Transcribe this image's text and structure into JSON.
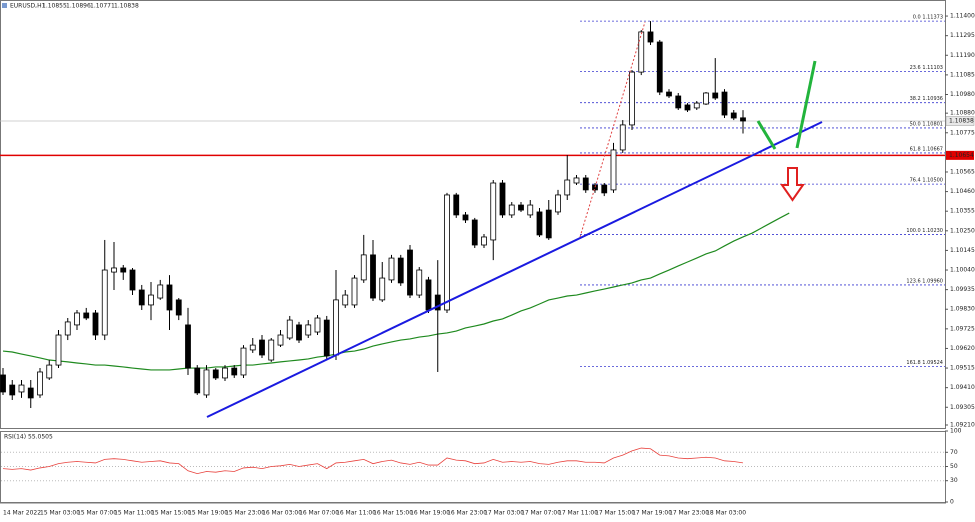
{
  "chart_data": {
    "type": "candlestick",
    "symbol": "EURUSD,H1",
    "categories": [
      "14 Mar 2022",
      null,
      null,
      null,
      "15 Mar 03:00",
      null,
      null,
      null,
      "15 Mar 07:00",
      null,
      null,
      null,
      "15 Mar 11:00",
      null,
      null,
      null,
      "15 Mar 15:00",
      null,
      null,
      null,
      "15 Mar 19:00",
      null,
      null,
      null,
      "15 Mar 23:00",
      null,
      null,
      null,
      "16 Mar 03:00",
      null,
      null,
      null,
      "16 Mar 07:00",
      null,
      null,
      null,
      "16 Mar 11:00",
      null,
      null,
      null,
      "16 Mar 15:00",
      null,
      null,
      null,
      "16 Mar 19:00",
      null,
      null,
      null,
      "16 Mar 23:00",
      null,
      null,
      null,
      "17 Mar 03:00",
      null,
      null,
      null,
      "17 Mar 07:00",
      null,
      null,
      null,
      "17 Mar 11:00",
      null,
      null,
      null,
      "17 Mar 15:00",
      null,
      null,
      null,
      "17 Mar 19:00",
      null,
      null,
      null,
      "17 Mar 23:00",
      null,
      null,
      null,
      "18 Mar 03:00",
      null,
      null,
      null,
      null,
      null,
      null,
      null,
      null,
      null
    ],
    "open": [
      1.09478,
      1.09424,
      1.09387,
      1.09408,
      1.09371,
      1.09462,
      1.09531,
      1.09692,
      1.09746,
      1.0981,
      1.0981,
      1.09692,
      1.10029,
      1.10051,
      1.1004,
      1.09933,
      1.09853,
      1.0989,
      1.0996,
      1.0988,
      1.09746,
      1.09515,
      1.09371,
      1.09505,
      1.09462,
      1.09515,
      1.09478,
      1.09612,
      1.09665,
      1.09558,
      1.09638,
      1.09676,
      1.09746,
      1.09692,
      1.09708,
      1.09772,
      1.09585,
      1.09853,
      1.09853,
      1.09987,
      1.10121,
      1.0988,
      1.09987,
      1.10104,
      1.10147,
      1.09906,
      1.09987,
      1.09906,
      1.09826,
      1.10442,
      1.10335,
      1.10308,
      1.10174,
      1.10201,
      1.10506,
      1.10335,
      1.10388,
      1.10335,
      1.10351,
      1.10361,
      1.10351,
      1.10442,
      1.10506,
      1.10533,
      1.10495,
      1.10495,
      1.10469,
      1.10683,
      1.10817,
      1.111,
      1.11315,
      1.11261,
      1.10993,
      1.10972,
      1.10924,
      1.10908,
      1.10929,
      1.10988,
      1.10993,
      1.10881,
      1.10855,
      null,
      null,
      null,
      null,
      null
    ],
    "high": [
      1.09515,
      1.09451,
      1.09451,
      1.09451,
      1.09515,
      1.09558,
      1.09719,
      1.09783,
      1.09826,
      1.09837,
      1.09826,
      1.10201,
      1.1019,
      1.10067,
      1.10051,
      1.0996,
      1.09976,
      1.09987,
      1.10013,
      1.0989,
      1.09837,
      1.09531,
      1.09531,
      1.09515,
      1.09531,
      1.09531,
      1.09638,
      1.09676,
      1.09692,
      1.09676,
      1.09719,
      1.09794,
      1.09762,
      1.09772,
      1.09799,
      1.09794,
      1.1004,
      1.09933,
      1.10013,
      1.10228,
      1.10201,
      1.10083,
      1.10121,
      1.10121,
      1.10174,
      1.10056,
      1.10003,
      1.10093,
      1.10453,
      1.10453,
      1.10351,
      1.10319,
      1.10233,
      1.10522,
      1.10522,
      1.10404,
      1.10404,
      1.10415,
      1.10372,
      1.10415,
      1.10469,
      1.10656,
      1.10549,
      1.10549,
      1.10506,
      1.10506,
      1.10721,
      1.10843,
      1.11111,
      1.11325,
      1.11373,
      1.11272,
      1.11009,
      1.10988,
      1.10934,
      1.10945,
      1.10993,
      1.11175,
      1.11009,
      1.10897,
      1.10896,
      null,
      null,
      null,
      null,
      null
    ],
    "low": [
      1.09371,
      1.09344,
      1.09355,
      1.09301,
      1.09355,
      1.09451,
      1.09515,
      1.09665,
      1.09719,
      1.09772,
      1.09665,
      1.09665,
      1.09933,
      1.09987,
      1.09906,
      1.09826,
      1.09772,
      1.0988,
      1.09719,
      1.09772,
      1.09478,
      1.09371,
      1.09355,
      1.09451,
      1.09446,
      1.09462,
      1.09462,
      1.09596,
      1.09569,
      1.09548,
      1.09628,
      1.09665,
      1.09649,
      1.09676,
      1.09692,
      1.09564,
      1.09558,
      1.09837,
      1.09837,
      1.09971,
      1.09874,
      1.09869,
      1.09971,
      1.09955,
      1.0989,
      1.0989,
      1.0981,
      1.09494,
      1.0981,
      1.10319,
      1.10292,
      1.10158,
      1.10158,
      1.10093,
      1.10319,
      1.10319,
      1.10351,
      1.10319,
      1.10217,
      1.10201,
      1.10335,
      1.10415,
      1.10495,
      1.10453,
      1.10453,
      1.10436,
      1.10453,
      1.10667,
      1.1079,
      1.11084,
      1.11245,
      1.10977,
      1.10961,
      1.10897,
      1.10886,
      1.10897,
      1.10924,
      1.10951,
      1.10854,
      1.10843,
      1.10771,
      null,
      null,
      null,
      null,
      null
    ],
    "close": [
      1.09387,
      1.09371,
      1.09424,
      1.09355,
      1.09494,
      1.09531,
      1.09692,
      1.09762,
      1.0981,
      1.09783,
      1.09692,
      1.1004,
      1.10051,
      1.10029,
      1.09933,
      1.09853,
      1.09906,
      1.0996,
      1.09826,
      1.09799,
      1.09515,
      1.09382,
      1.09505,
      1.09462,
      1.09515,
      1.09478,
      1.09622,
      1.09638,
      1.09585,
      1.09665,
      1.09692,
      1.09772,
      1.09665,
      1.09746,
      1.09783,
      1.0958,
      1.0988,
      1.09906,
      1.09997,
      1.10121,
      1.0989,
      1.09997,
      1.10104,
      1.09971,
      1.09906,
      1.1004,
      1.09826,
      1.09826,
      1.10442,
      1.10335,
      1.10308,
      1.10174,
      1.10217,
      1.10506,
      1.10335,
      1.10388,
      1.10361,
      1.10388,
      1.10228,
      1.10212,
      1.10442,
      1.10522,
      1.10533,
      1.10469,
      1.10469,
      1.10453,
      1.10683,
      1.10817,
      1.111,
      1.11315,
      1.11261,
      1.10993,
      1.10972,
      1.10908,
      1.10897,
      1.10934,
      1.10988,
      1.10961,
      1.1087,
      1.10854,
      1.10838,
      null,
      null,
      null,
      null,
      null
    ],
    "up_color": "#ffffff",
    "down_color": "#000000",
    "ylim": [
      1.09194,
      1.11486
    ],
    "yticks": [
      {
        "value": 1.114,
        "label": "1.11400"
      },
      1.11295,
      {
        "value": 1.1119,
        "label": "1.11190"
      },
      1.11085,
      {
        "value": 1.1098,
        "label": "1.10980"
      },
      {
        "value": 1.1088,
        "label": "1.10880"
      },
      1.10775,
      1.10565,
      {
        "value": 1.1046,
        "label": "1.10460"
      },
      1.10355,
      {
        "value": 1.1025,
        "label": "1.10250"
      },
      1.10145,
      {
        "value": 1.1004,
        "label": "1.10040"
      },
      1.09935,
      {
        "value": 1.0983,
        "label": "1.09830"
      },
      1.09725,
      {
        "value": 1.0962,
        "label": "1.09620"
      },
      1.09515,
      {
        "value": 1.0941,
        "label": "1.09410"
      },
      1.09305,
      {
        "value": 1.0921,
        "label": "1.09210"
      }
    ],
    "ma": {
      "color": "#1f8a1f",
      "values": [
        1.09606,
        1.09601,
        1.0959,
        1.0958,
        1.09569,
        1.09558,
        1.09553,
        1.09548,
        1.09542,
        1.09537,
        1.09531,
        1.09531,
        1.09526,
        1.09521,
        1.09515,
        1.0951,
        1.09505,
        1.09505,
        1.09505,
        1.0951,
        1.09515,
        1.09515,
        1.09515,
        1.09521,
        1.09521,
        1.09526,
        1.09531,
        1.09531,
        1.09537,
        1.09542,
        1.09548,
        1.09553,
        1.09558,
        1.09564,
        1.09574,
        1.0958,
        1.0959,
        1.09601,
        1.09606,
        1.09617,
        1.09633,
        1.09644,
        1.09655,
        1.09665,
        1.09671,
        1.09681,
        1.09687,
        1.09697,
        1.09703,
        1.09713,
        1.0973,
        1.0974,
        1.09751,
        1.09767,
        1.09778,
        1.09799,
        1.09821,
        1.09837,
        1.09858,
        1.0988,
        1.0989,
        1.09901,
        1.09906,
        1.09917,
        1.09928,
        1.09938,
        1.09949,
        1.0996,
        1.09971,
        1.09987,
        1.09997,
        1.10019,
        1.1004,
        1.10062,
        1.10083,
        1.10104,
        1.10126,
        1.10142,
        1.10169,
        1.10195,
        1.10217,
        1.10238,
        1.10265,
        1.10292,
        1.10319,
        1.10345
      ]
    },
    "level": {
      "value": 1.10654,
      "color": "#e00000"
    },
    "fib_levels": [
      {
        "label": "0.0 1.11373",
        "value": 1.11373
      },
      {
        "label": "23.6 1.11103",
        "value": 1.11103
      },
      {
        "label": "38.2 1.10936",
        "value": 1.10936
      },
      {
        "label": "50.0 1.10801",
        "value": 1.10801
      },
      {
        "label": "61.8 1.10667",
        "value": 1.10667
      },
      {
        "label": "76.4 1.10500",
        "value": 1.105
      },
      {
        "label": "100.0 1.10230",
        "value": 1.1023
      },
      {
        "label": "123.6 1.09960",
        "value": 1.0996
      },
      {
        "label": "161.8 1.09524",
        "value": 1.09524
      }
    ],
    "fib_color": "#3a3ad0",
    "rsi": {
      "label": "RSI(14)",
      "color": "#e8413c",
      "ylim": [
        0,
        100
      ],
      "yticks": [
        100,
        70,
        50,
        30,
        0
      ],
      "values": [
        47,
        46,
        47,
        45,
        48,
        50,
        54,
        56,
        57,
        56,
        55,
        60,
        61,
        60,
        58,
        56,
        57,
        58,
        55,
        54,
        44,
        40,
        43,
        42,
        44,
        43,
        48,
        49,
        47,
        50,
        51,
        53,
        50,
        52,
        54,
        47,
        55,
        56,
        58,
        60,
        54,
        57,
        59,
        55,
        53,
        56,
        52,
        52,
        62,
        59,
        58,
        54,
        55,
        60,
        56,
        57,
        56,
        57,
        54,
        53,
        56,
        58,
        58,
        56,
        56,
        55,
        62,
        66,
        72,
        76,
        75,
        66,
        65,
        62,
        61,
        62,
        63,
        62,
        58,
        57,
        55.0505,
        null,
        null,
        null,
        null,
        null
      ]
    }
  }
}
